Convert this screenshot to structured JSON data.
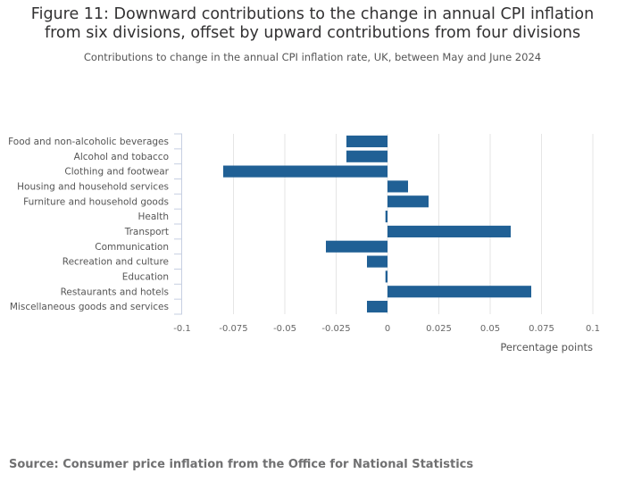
{
  "chart_data": {
    "type": "bar",
    "orientation": "horizontal",
    "title": "Figure 11: Downward contributions to the change in annual CPI inflation from six divisions, offset by upward contributions from four divisions",
    "title_lines": [
      "Figure 11: Downward contributions to the change in annual CPI inflation",
      "from six divisions, offset by upward contributions from four divisions"
    ],
    "subtitle": "Contributions to change in the annual CPI inflation rate, UK, between May and June 2024",
    "categories": [
      "Food and non-alcoholic beverages",
      "Alcohol and tobacco",
      "Clothing and footwear",
      "Housing and household services",
      "Furniture and household goods",
      "Health",
      "Transport",
      "Communication",
      "Recreation and culture",
      "Education",
      "Restaurants and hotels",
      "Miscellaneous goods and services"
    ],
    "values": [
      -0.02,
      -0.02,
      -0.08,
      0.01,
      0.02,
      -0.001,
      0.06,
      -0.03,
      -0.01,
      -0.001,
      0.07,
      -0.01
    ],
    "xlabel": "Percentage points",
    "ylabel": "",
    "xlim": [
      -0.1,
      0.1
    ],
    "xticks": [
      -0.1,
      -0.075,
      -0.05,
      -0.025,
      0,
      0.025,
      0.05,
      0.075,
      0.1
    ],
    "xtick_labels": [
      "-0.1",
      "-0.075",
      "-0.05",
      "-0.025",
      "0",
      "0.025",
      "0.05",
      "0.075",
      "0.1"
    ],
    "grid": true,
    "bar_color": "#206095",
    "source": "Source: Consumer price inflation from the Office for National Statistics"
  }
}
